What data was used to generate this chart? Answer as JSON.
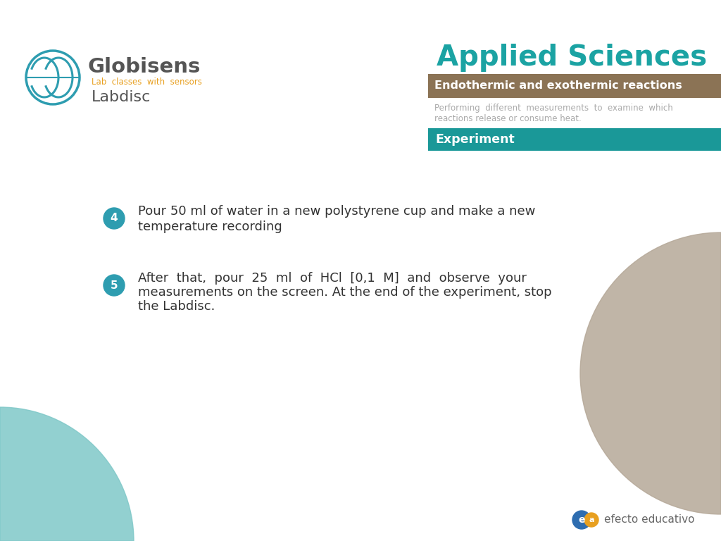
{
  "bg_color": "#ffffff",
  "title_applied": "Applied Sciences",
  "title_applied_color": "#1ba3a3",
  "bar1_text": "Endothermic and exothermic reactions",
  "bar1_color": "#8B7355",
  "bar1_text_color": "#ffffff",
  "desc_line1": "Performing  different  measurements  to  examine  which",
  "desc_line2": "reactions release or consume heat.",
  "desc_text_color": "#aaaaaa",
  "bar2_text": "Experiment",
  "bar2_color": "#1a9898",
  "bar2_text_color": "#ffffff",
  "item4_num": "4",
  "item4_text_line1": "Pour 50 ml of water in a new polystyrene cup and make a new",
  "item4_text_line2": "temperature recording",
  "item5_num": "5",
  "item5_text_line1": "After  that,  pour  25  ml  of  HCl  [0,1  M]  and  observe  your",
  "item5_text_line2": "measurements on the screen. At the end of the experiment, stop",
  "item5_text_line3": "the Labdisc.",
  "bullet_color": "#2e9db0",
  "text_color": "#333333",
  "globisens_color": "#555555",
  "lab_text_color": "#e8a020",
  "teal_circle_color": "#7fc8c8",
  "beige_circle_color": "#b5a898",
  "footer_text": "efecto educativo",
  "footer_text_color": "#666666",
  "ea_blue": "#2e6db0",
  "ea_orange": "#e8a020"
}
